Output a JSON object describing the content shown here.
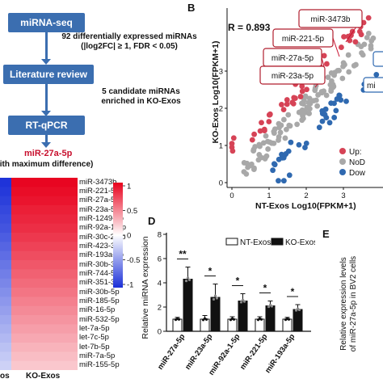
{
  "flowchart": {
    "steps": [
      "miRNA-seq",
      "Literature review",
      "RT-qPCR"
    ],
    "note1_line1": "92 differentially expressed miRNAs",
    "note1_line2": "(|log2FC| ≥ 1, FDR < 0.05)",
    "note2_line1": "5 candidate miRNAs",
    "note2_line2": "enriched in KO-Exos",
    "result": "miR-27a-5p",
    "result_note": "with maximum difference)"
  },
  "heatmap": {
    "rows": [
      "miR-3473b",
      "miR-221-5p",
      "miR-27a-5p",
      "miR-23a-5p",
      "miR-1249-5p",
      "miR-92a-1-5p",
      "miR-30c-2-3p",
      "miR-423-3p",
      "miR-193a-5p",
      "miR-30b-3p",
      "miR-744-5p",
      "miR-351-3p",
      "miR-30b-5p",
      "miR-185-5p",
      "miR-16-5p",
      "miR-532-5p",
      "let-7a-5p",
      "let-7c-5p",
      "let-7b-5p",
      "miR-7a-5p",
      "miR-155-5p"
    ],
    "col_labels": [
      "os",
      "KO-Exos"
    ],
    "scale_ticks": [
      "1",
      "0.5",
      "0",
      "-0.5",
      "-1"
    ],
    "ko_values": [
      0.98,
      0.95,
      0.92,
      0.88,
      0.85,
      0.82,
      0.78,
      0.74,
      0.7,
      0.66,
      0.62,
      0.58,
      0.54,
      0.5,
      0.46,
      0.42,
      0.38,
      0.34,
      0.3,
      0.26,
      0.22
    ],
    "colors": {
      "high": "#e8001c",
      "mid": "#ffffff",
      "low": "#1a2fd8"
    }
  },
  "scatter": {
    "letter": "B",
    "r_label": "R = 0.893",
    "xlabel": "NT-Exos Log10(FPKM+1)",
    "ylabel": "KO-Exos Log10(FPKM+1)",
    "xticks": [
      "0",
      "1",
      "2",
      "3"
    ],
    "yticks": [
      "0",
      "1",
      "2",
      "3"
    ],
    "callouts": [
      "miR-3473b",
      "miR-221-5p",
      "miR-27a-5p",
      "miR-23a-5p"
    ],
    "legend": [
      "Up:",
      "NoD",
      "Dow"
    ],
    "colors": {
      "up": "#d64356",
      "nodiff": "#a8a8a8",
      "down": "#2f69b0"
    }
  },
  "chart_data": {
    "type": "bar",
    "title": "",
    "ylabel": "Relative miRNA expression",
    "ylim": [
      0,
      8
    ],
    "yticks": [
      "0",
      "2",
      "4",
      "6",
      "8"
    ],
    "categories": [
      "miR-27a-5p",
      "miR-23a-5p",
      "miR-92a-1-5p",
      "miR-221-5p",
      "miR-193a-5p"
    ],
    "series": [
      {
        "name": "NT-Exos",
        "values": [
          1.0,
          1.0,
          1.0,
          1.0,
          1.0
        ],
        "errors": [
          0.15,
          0.3,
          0.2,
          0.2,
          0.15
        ]
      },
      {
        "name": "KO-Exos",
        "values": [
          4.3,
          2.8,
          2.5,
          2.1,
          1.8
        ],
        "errors": [
          1.0,
          1.1,
          0.6,
          0.4,
          0.4
        ]
      }
    ],
    "significance": [
      "**",
      "*",
      "*",
      "*",
      "*"
    ]
  },
  "panel_d": {
    "letter": "D"
  },
  "panel_e": {
    "letter": "E",
    "ylabel_line1": "Relative expression levels",
    "ylabel_line2": "of miR-27a-5p in BV2 cells"
  },
  "panel_b_letter": "B"
}
